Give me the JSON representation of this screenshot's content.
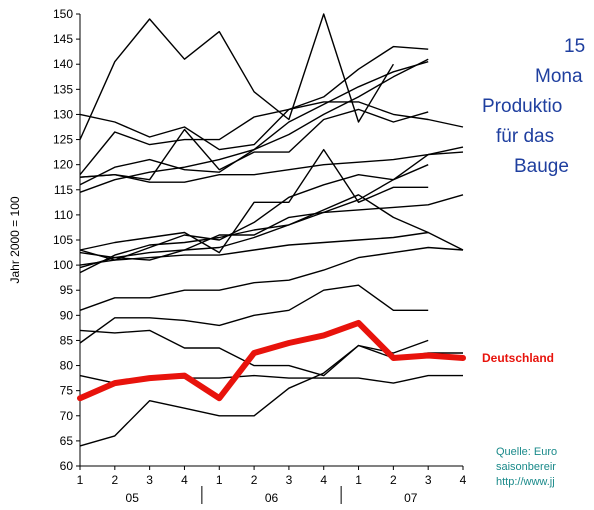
{
  "chart_data": {
    "type": "line",
    "title_lines": [
      "15",
      "Mona",
      "Produktio",
      "für das",
      "Bauge"
    ],
    "ylabel": "Jahr 2000 = 100",
    "ylim": [
      60,
      150
    ],
    "yticks": [
      60,
      65,
      70,
      75,
      80,
      85,
      90,
      95,
      100,
      105,
      110,
      115,
      120,
      125,
      130,
      135,
      140,
      145,
      150
    ],
    "x_tick_labels": [
      "1",
      "2",
      "3",
      "4",
      "1",
      "2",
      "3",
      "4",
      "1",
      "2",
      "3",
      "4"
    ],
    "year_labels": [
      "05",
      "06",
      "07"
    ],
    "highlight_label": "Deutschland",
    "source_lines": [
      "Quelle: Euro",
      "saisonbereir",
      "http://www.jj"
    ],
    "highlight_series": {
      "values": [
        73.5,
        76.5,
        77.5,
        78,
        73.5,
        82.5,
        84.5,
        86,
        88.5,
        81.5,
        82,
        81.5
      ]
    },
    "series": [
      {
        "values": [
          125,
          140.5,
          149,
          141,
          146.5,
          134.5,
          129,
          150,
          128.5,
          140
        ]
      },
      {
        "values": [
          130,
          128.5,
          125.5,
          127.5,
          123,
          124,
          131,
          132.5,
          132.5,
          130,
          129,
          127.5
        ]
      },
      {
        "values": [
          118,
          126.5,
          124,
          125,
          125,
          129.5,
          131,
          133.5,
          139,
          143.5,
          143
        ]
      },
      {
        "values": [
          117.5,
          118,
          117,
          127,
          119,
          122.5,
          122.5,
          129,
          131,
          128.5,
          130.5
        ]
      },
      {
        "values": [
          116,
          119.5,
          121,
          119,
          118.5,
          123,
          128.5,
          132,
          135.5,
          138.5,
          140.5
        ]
      },
      {
        "values": [
          114.5,
          117,
          118.5,
          119.5,
          121,
          123,
          126,
          130,
          133.5,
          137.5,
          141
        ]
      },
      {
        "values": [
          117.5,
          118,
          116.5,
          116.5,
          118,
          118,
          119,
          120,
          120.5,
          121,
          122,
          123.5
        ]
      },
      {
        "values": [
          103,
          104.5,
          105.5,
          106.5,
          102.5,
          112.5,
          112.5,
          123,
          112.5,
          115.5,
          115.5
        ]
      },
      {
        "values": [
          99.5,
          101.5,
          101,
          103,
          106,
          106,
          109.5,
          110.5,
          111,
          111.5,
          112,
          114
        ]
      },
      {
        "values": [
          98.5,
          102,
          104,
          104.5,
          105.5,
          107,
          108,
          111,
          114,
          109.5,
          106.5
        ]
      },
      {
        "values": [
          103,
          101,
          103.5,
          106,
          105,
          108.5,
          113.5,
          116,
          118,
          117,
          122,
          122.5
        ]
      },
      {
        "values": [
          102.5,
          101.5,
          102.5,
          103,
          103.5,
          105.5,
          108,
          110.5,
          113,
          117,
          120
        ]
      },
      {
        "values": [
          100,
          101,
          101.5,
          102,
          102,
          103,
          104,
          104.5,
          105,
          105.5,
          106.5,
          103
        ]
      },
      {
        "values": [
          91,
          93.5,
          93.5,
          95,
          95,
          96.5,
          97,
          99,
          101.5,
          102.5,
          103.5,
          103
        ]
      },
      {
        "values": [
          87,
          86.5,
          87,
          83.5,
          83.5,
          80,
          80,
          78,
          84,
          82.5,
          85
        ]
      },
      {
        "values": [
          84.5,
          89.5,
          89.5,
          89,
          88,
          90,
          91,
          95,
          96,
          91,
          91
        ]
      },
      {
        "values": [
          64,
          66,
          73,
          71.5,
          70,
          70,
          75.5,
          78.5,
          84,
          81.5,
          82.5,
          82.5
        ]
      },
      {
        "values": [
          78,
          76.5,
          77.5,
          77.5,
          77.5,
          78,
          77.5,
          77.5,
          77.5,
          76.5,
          78,
          78
        ]
      }
    ]
  }
}
